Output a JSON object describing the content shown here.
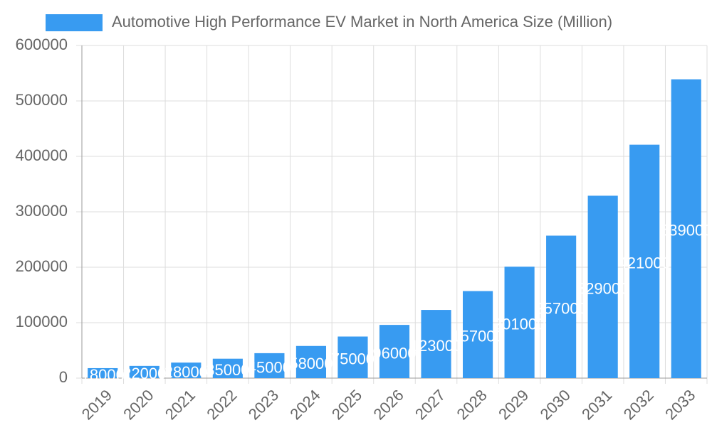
{
  "chart_data": {
    "type": "bar",
    "legend_label": "Automotive High Performance EV Market in North America Size (Million)",
    "categories": [
      "2019",
      "2020",
      "2021",
      "2022",
      "2023",
      "2024",
      "2025",
      "2026",
      "2027",
      "2028",
      "2029",
      "2030",
      "2031",
      "2032",
      "2033"
    ],
    "values": [
      18000,
      22000,
      28000,
      35000,
      45000,
      58000,
      75000,
      96000,
      123000,
      157000,
      201000,
      257000,
      329000,
      421000,
      539000
    ],
    "color": "#389bf1",
    "ylim": [
      0,
      600000
    ],
    "yticks": [
      0,
      100000,
      200000,
      300000,
      400000,
      500000,
      600000
    ],
    "grid": true
  }
}
